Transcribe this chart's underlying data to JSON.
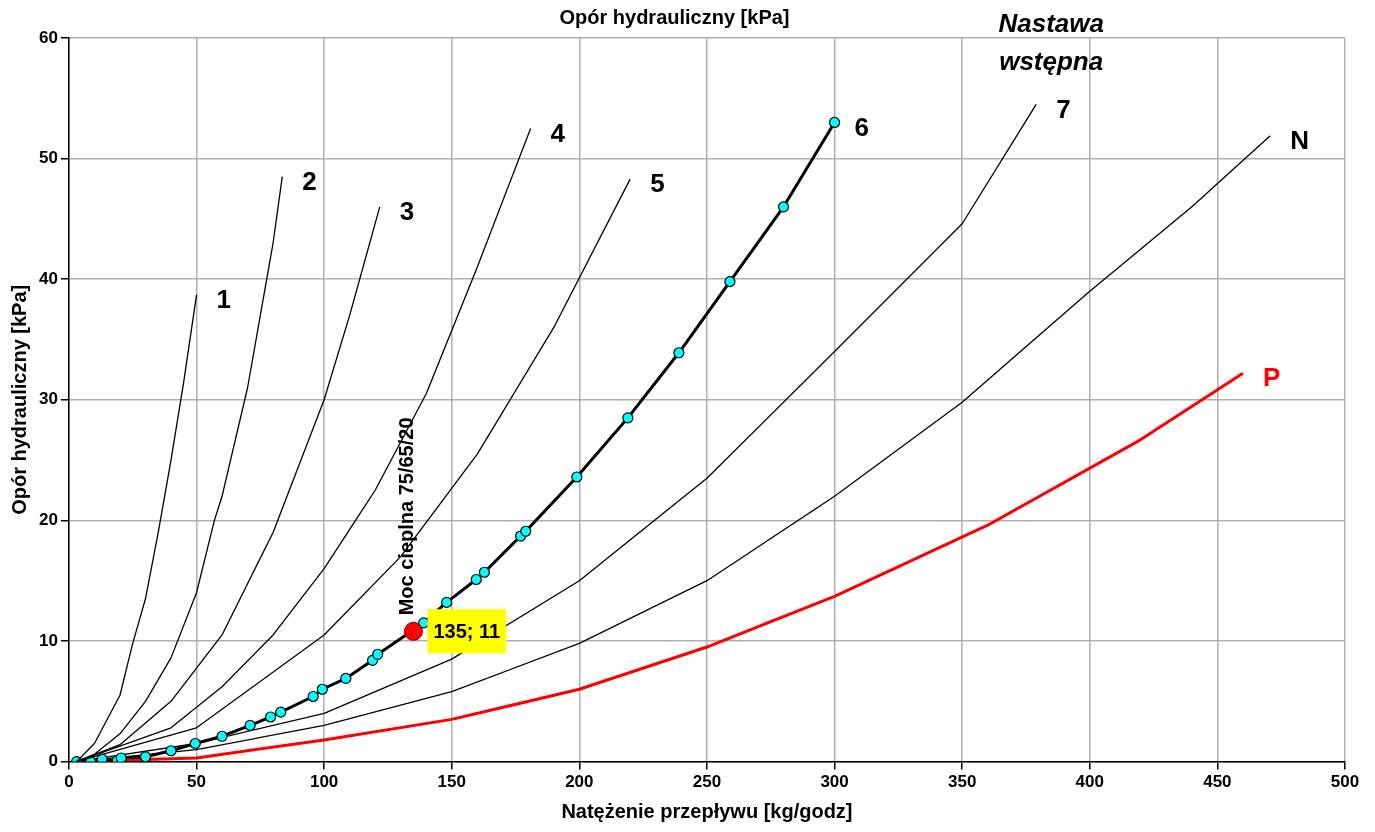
{
  "chart_data": {
    "type": "line",
    "title": "Opór hydrauliczny [kPa]",
    "xlabel": "Natężenie przepływu [kg/godz]",
    "ylabel": "Opór hydrauliczny [kPa]",
    "legend_title": "Nastawa wstępna",
    "xlim": [
      0,
      500
    ],
    "xticks": [
      0,
      50,
      100,
      150,
      200,
      250,
      300,
      350,
      400,
      450,
      500
    ],
    "ylim": [
      0,
      60
    ],
    "yticks": [
      0,
      10,
      20,
      30,
      40,
      50,
      60
    ],
    "grid": true,
    "legend": false,
    "marker": "none",
    "series": [
      {
        "name": "1",
        "color": "#000000",
        "x": [
          3,
          10,
          20,
          25,
          30,
          35,
          40,
          45,
          50
        ],
        "values": [
          0,
          1.5,
          5.5,
          9.8,
          13.5,
          19,
          25,
          31.5,
          38.7
        ]
      },
      {
        "name": "2",
        "color": "#000000",
        "x": [
          3,
          10,
          20,
          30,
          40,
          50,
          57,
          60,
          70,
          80,
          83.6
        ],
        "values": [
          0,
          0.6,
          2.3,
          5,
          8.6,
          14,
          20,
          22,
          31,
          43,
          48.5
        ]
      },
      {
        "name": "3",
        "color": "#000000",
        "x": [
          3,
          20,
          40,
          60,
          80,
          100,
          110,
          121.8
        ],
        "values": [
          0,
          1.4,
          5,
          10.5,
          19,
          30,
          37,
          46
        ]
      },
      {
        "name": "4",
        "color": "#000000",
        "x": [
          3,
          40,
          60,
          80,
          100,
          120,
          140,
          160,
          180.9
        ],
        "values": [
          0,
          2.8,
          6.2,
          10.5,
          16,
          22.5,
          30.5,
          41,
          52.5
        ]
      },
      {
        "name": "5",
        "color": "#000000",
        "x": [
          3,
          50,
          100,
          130,
          160,
          190,
          219.9
        ],
        "values": [
          0,
          2.8,
          10.5,
          17,
          25.5,
          36,
          48.3
        ]
      },
      {
        "name": "6",
        "color": "#000000",
        "marker": "circle",
        "x": [
          3,
          8.5,
          13,
          19,
          20.5,
          30,
          40,
          49.5,
          60,
          71,
          79,
          83,
          95.7,
          99.3,
          108.5,
          119,
          121,
          139,
          148,
          159.6,
          162.8,
          177,
          179,
          199,
          219,
          239,
          259,
          280,
          300
        ],
        "values": [
          0,
          0,
          0.2,
          0.1,
          0.3,
          0.4,
          0.9,
          1.5,
          2.1,
          3,
          3.7,
          4.1,
          5.4,
          6,
          6.9,
          8.4,
          8.9,
          11.5,
          13.2,
          15.1,
          15.7,
          18.7,
          19.1,
          23.6,
          28.5,
          33.9,
          39.8,
          46,
          53
        ]
      },
      {
        "name": "7",
        "color": "#000000",
        "x": [
          3,
          50,
          100,
          150,
          200,
          250,
          300,
          350,
          379
        ],
        "values": [
          0,
          1.5,
          4,
          8.5,
          15,
          23.5,
          34,
          44.6,
          54.5
        ]
      },
      {
        "name": "N",
        "color": "#000000",
        "x": [
          3,
          50,
          100,
          150,
          200,
          250,
          300,
          350,
          400,
          440,
          470.7
        ],
        "values": [
          0,
          1,
          3,
          5.8,
          9.8,
          15,
          22,
          29.8,
          39,
          46,
          51.9
        ]
      },
      {
        "name": "P",
        "color": "#ff0000",
        "x": [
          3,
          50,
          100,
          150,
          200,
          250,
          300,
          360,
          420,
          460
        ],
        "values": [
          0,
          0.3,
          1.8,
          3.5,
          6,
          9.5,
          13.7,
          19.6,
          26.7,
          32.2
        ]
      },
      {
        "type": "scatter",
        "marker": "circle",
        "color": "#ff0000",
        "x": [
          135
        ],
        "values": [
          10.8
        ],
        "value_labels": [
          "135; 11"
        ]
      }
    ],
    "annotations": [
      {
        "text": "Moc cieplna 75/65/20",
        "x": 135,
        "y": 10.8
      }
    ]
  }
}
